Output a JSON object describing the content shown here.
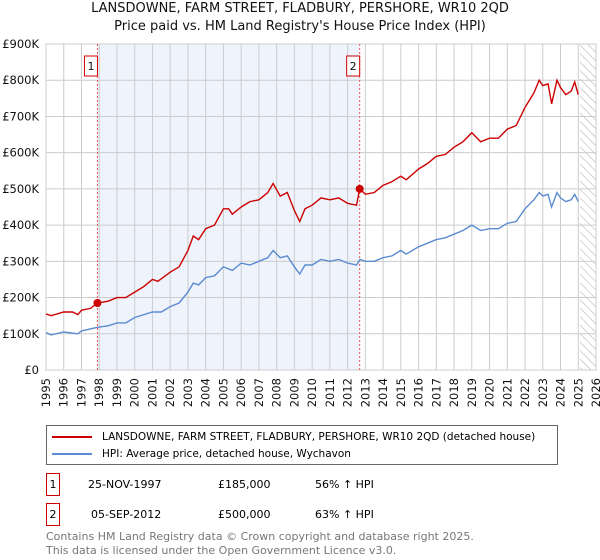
{
  "chart_data": {
    "type": "line",
    "title": "LANSDOWNE, FARM STREET, FLADBURY, PERSHORE, WR10 2QD",
    "subtitle": "Price paid vs. HM Land Registry's House Price Index (HPI)",
    "xlim": [
      1995,
      2026
    ],
    "ylim": [
      0,
      900000
    ],
    "x_ticks": [
      "1995",
      "1996",
      "1997",
      "1998",
      "1999",
      "2000",
      "2001",
      "2002",
      "2003",
      "2004",
      "2005",
      "2006",
      "2007",
      "2008",
      "2009",
      "2010",
      "2011",
      "2012",
      "2013",
      "2014",
      "2015",
      "2016",
      "2017",
      "2018",
      "2019",
      "2020",
      "2021",
      "2022",
      "2023",
      "2024",
      "2025",
      "2026"
    ],
    "y_ticks": [
      {
        "v": 0,
        "l": "£0"
      },
      {
        "v": 100000,
        "l": "£100K"
      },
      {
        "v": 200000,
        "l": "£200K"
      },
      {
        "v": 300000,
        "l": "£300K"
      },
      {
        "v": 400000,
        "l": "£400K"
      },
      {
        "v": 500000,
        "l": "£500K"
      },
      {
        "v": 600000,
        "l": "£600K"
      },
      {
        "v": 700000,
        "l": "£700K"
      },
      {
        "v": 800000,
        "l": "£800K"
      },
      {
        "v": 900000,
        "l": "£900K"
      }
    ],
    "grid": true,
    "shaded_range": [
      1997.9,
      2012.68
    ],
    "hatched_from": 2025.1,
    "series": [
      {
        "name": "LANSDOWNE, FARM STREET, FLADBURY, PERSHORE, WR10 2QD (detached house)",
        "color": "#cc0000",
        "x": [
          1995,
          1995.3,
          1996,
          1996.5,
          1996.8,
          1997,
          1997.5,
          1997.9,
          1998.5,
          1999,
          1999.5,
          2000,
          2000.5,
          2001,
          2001.3,
          2002,
          2002.5,
          2003,
          2003.3,
          2003.6,
          2004,
          2004.5,
          2005,
          2005.3,
          2005.5,
          2006,
          2006.5,
          2007,
          2007.5,
          2007.8,
          2008.2,
          2008.6,
          2009,
          2009.3,
          2009.6,
          2010,
          2010.5,
          2011,
          2011.5,
          2012,
          2012.5,
          2012.68,
          2013,
          2013.5,
          2014,
          2014.5,
          2015,
          2015.3,
          2016,
          2016.5,
          2017,
          2017.5,
          2018,
          2018.5,
          2019,
          2019.5,
          2020,
          2020.5,
          2021,
          2021.5,
          2022,
          2022.5,
          2022.8,
          2023,
          2023.3,
          2023.5,
          2023.8,
          2024,
          2024.3,
          2024.6,
          2024.8,
          2025
        ],
        "y": [
          155,
          150,
          160,
          160,
          153,
          165,
          170,
          185,
          190,
          200,
          200,
          215,
          230,
          250,
          245,
          270,
          285,
          330,
          370,
          360,
          390,
          400,
          445,
          445,
          430,
          450,
          465,
          470,
          490,
          515,
          480,
          490,
          440,
          410,
          445,
          455,
          475,
          470,
          475,
          460,
          455,
          500,
          485,
          490,
          510,
          520,
          535,
          525,
          555,
          570,
          590,
          595,
          615,
          630,
          655,
          630,
          640,
          640,
          665,
          675,
          725,
          765,
          800,
          785,
          790,
          735,
          800,
          780,
          760,
          770,
          795,
          760
        ]
      },
      {
        "name": "HPI: Average price, detached house, Wychavon",
        "color": "#5b8bd0",
        "x": [
          1995,
          1995.3,
          1996,
          1996.8,
          1997,
          1997.9,
          1998.5,
          1999,
          1999.5,
          2000,
          2001,
          2001.5,
          2002,
          2002.5,
          2003,
          2003.3,
          2003.6,
          2004,
          2004.5,
          2005,
          2005.5,
          2006,
          2006.5,
          2007,
          2007.5,
          2007.8,
          2008.2,
          2008.6,
          2009,
          2009.3,
          2009.6,
          2010,
          2010.5,
          2011,
          2011.5,
          2012,
          2012.5,
          2012.7,
          2013,
          2013.5,
          2014,
          2014.5,
          2015,
          2015.3,
          2016,
          2016.5,
          2017,
          2017.5,
          2018,
          2018.5,
          2019,
          2019.5,
          2020,
          2020.5,
          2021,
          2021.5,
          2022,
          2022.5,
          2022.8,
          2023,
          2023.3,
          2023.5,
          2023.8,
          2024,
          2024.3,
          2024.6,
          2024.8,
          2025
        ],
        "y": [
          103,
          97,
          105,
          100,
          108,
          118,
          122,
          130,
          130,
          145,
          160,
          160,
          175,
          185,
          215,
          240,
          235,
          255,
          260,
          285,
          275,
          295,
          290,
          300,
          310,
          330,
          310,
          315,
          285,
          265,
          290,
          290,
          305,
          300,
          305,
          295,
          290,
          305,
          300,
          300,
          310,
          315,
          330,
          320,
          340,
          350,
          360,
          365,
          375,
          385,
          400,
          385,
          390,
          390,
          405,
          410,
          445,
          470,
          490,
          480,
          485,
          450,
          490,
          475,
          465,
          470,
          485,
          465
        ]
      }
    ],
    "y_units": "thousands GBP",
    "annotations": [
      {
        "label": "1",
        "x": 1997.9,
        "y": 185
      },
      {
        "label": "2",
        "x": 2012.68,
        "y": 500
      }
    ]
  },
  "legend": {
    "red": "LANSDOWNE, FARM STREET, FLADBURY, PERSHORE, WR10 2QD (detached house)",
    "blue": "HPI: Average price, detached house, Wychavon"
  },
  "transactions": [
    {
      "num": "1",
      "date": "25-NOV-1997",
      "price": "£185,000",
      "hpi": "56% ↑ HPI"
    },
    {
      "num": "2",
      "date": "05-SEP-2012",
      "price": "£500,000",
      "hpi": "63% ↑ HPI"
    }
  ],
  "footer": {
    "line1": "Contains HM Land Registry data © Crown copyright and database right 2025.",
    "line2": "This data is licensed under the Open Government Licence v3.0."
  }
}
